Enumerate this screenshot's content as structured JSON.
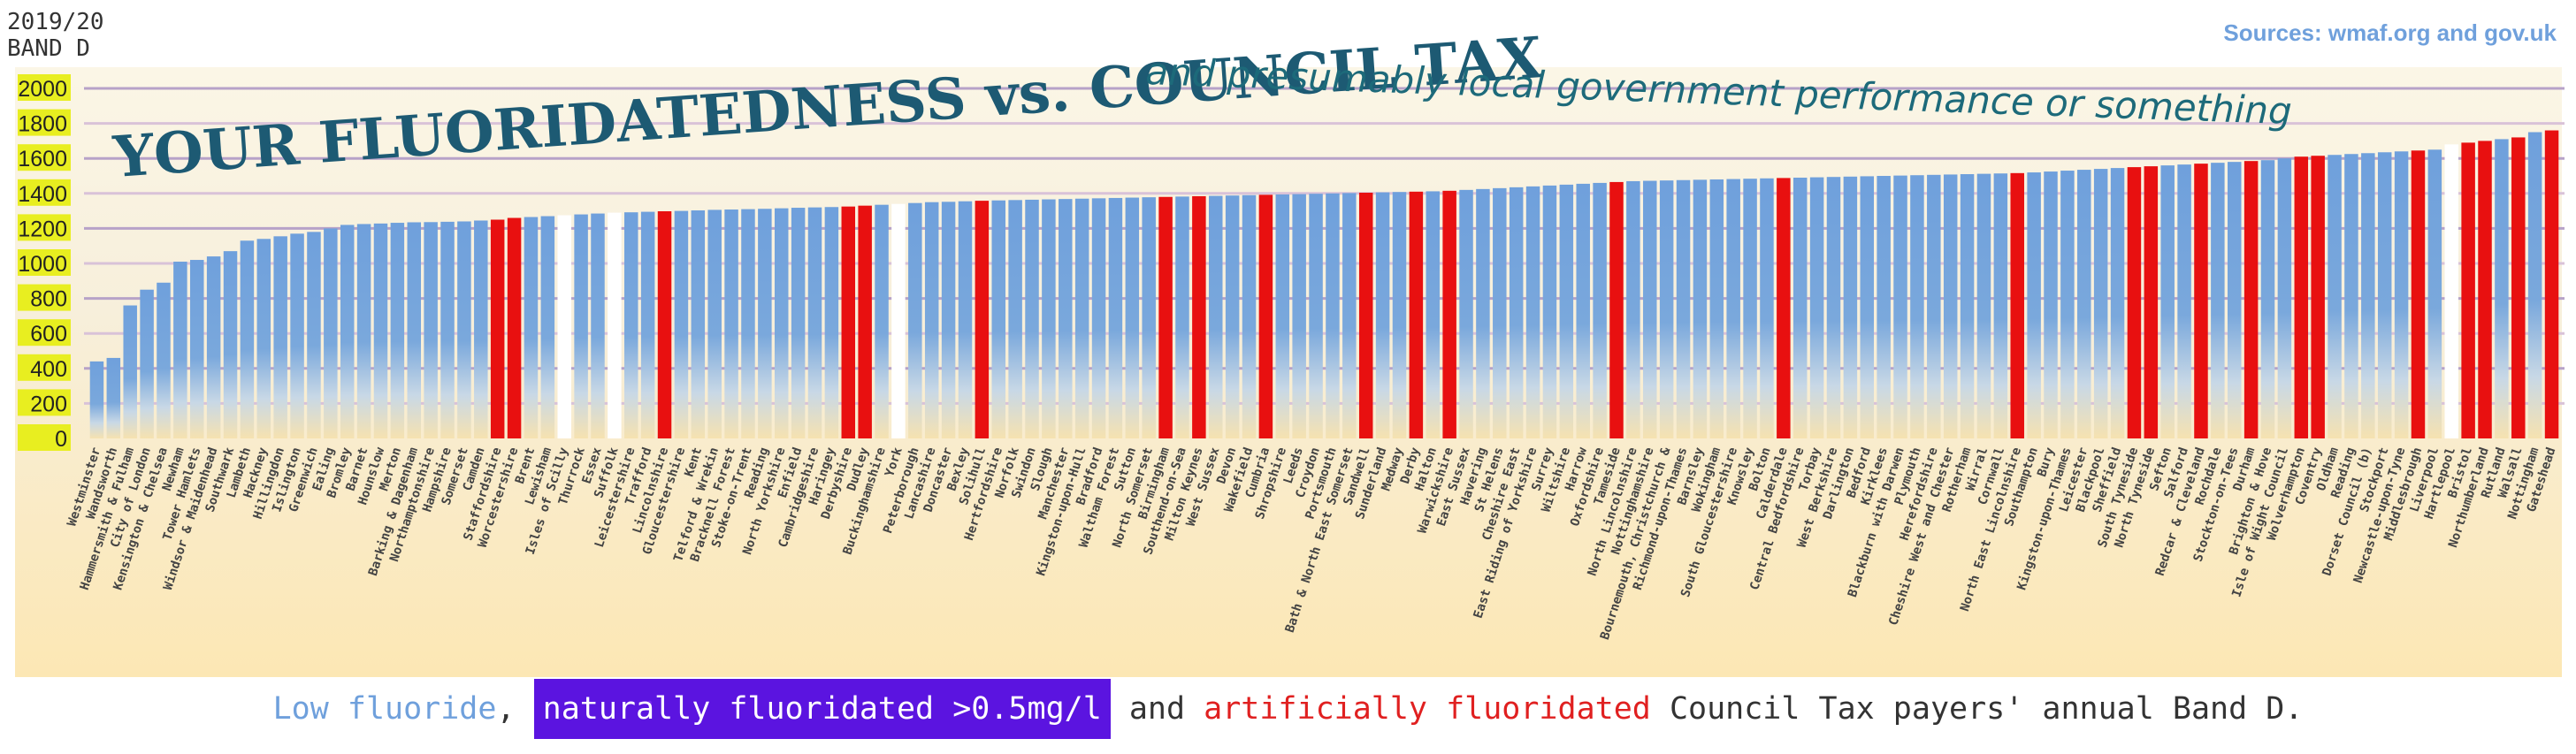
{
  "header": {
    "year": "2019/20",
    "band": "BAND D",
    "sources": "Sources: wmaf.org and gov.uk"
  },
  "caption": {
    "low": "Low fluoride",
    "sep1": ", ",
    "natural": "naturally fluoridated >0.5mg/l",
    "sep2": " and ",
    "artificial": "artificially fluoridated",
    "rest": " Council Tax payers' annual Band D."
  },
  "colors": {
    "low": "#6fa0dc",
    "natural": "#ffffff",
    "artificial": "#e81010",
    "title": "#1d5a73",
    "ytick_bg": "#e8ee20"
  },
  "chart_data": {
    "type": "bar",
    "title": "YOUR FLUORIDATEDNESS vs. COUNCIL TAX",
    "subtitle": "and presumably local government performance or something",
    "ylabel": "BAND D",
    "ylim": [
      0,
      2000
    ],
    "yticks": [
      0,
      200,
      400,
      600,
      800,
      1000,
      1200,
      1400,
      1600,
      1800,
      2000
    ],
    "grid": true,
    "legend": "caption below chart",
    "categories": [
      "Westminster",
      "Wandsworth",
      "Hammersmith & Fulham",
      "City of London",
      "Kensington & Chelsea",
      "Newham",
      "Tower Hamlets",
      "Windsor & Maidenhead",
      "Southwark",
      "Lambeth",
      "Hackney",
      "Hillingdon",
      "Islington",
      "Greenwich",
      "Ealing",
      "Bromley",
      "Barnet",
      "Hounslow",
      "Merton",
      "Barking & Dagenham",
      "Northamptonshire",
      "Hampshire",
      "Somerset",
      "Camden",
      "Staffordshire",
      "Worcestershire",
      "Brent",
      "Lewisham",
      "Isles of Scilly",
      "Thurrock",
      "Essex",
      "Suffolk",
      "Leicestershire",
      "Trafford",
      "Lincolnshire",
      "Gloucestershire",
      "Kent",
      "Telford & Wrekin",
      "Bracknell Forest",
      "Stoke-on-Trent",
      "Reading",
      "North Yorkshire",
      "Enfield",
      "Cambridgeshire",
      "Haringey",
      "Derbyshire",
      "Dudley",
      "Buckinghamshire",
      "York",
      "Peterborough",
      "Lancashire",
      "Doncaster",
      "Bexley",
      "Solihull",
      "Hertfordshire",
      "Norfolk",
      "Swindon",
      "Slough",
      "Manchester",
      "Kingston-upon-Hull",
      "Bradford",
      "Waltham Forest",
      "Sutton",
      "North Somerset",
      "Birmingham",
      "Southend-on-Sea",
      "Milton Keynes",
      "West Sussex",
      "Devon",
      "Wakefield",
      "Cumbria",
      "Shropshire",
      "Leeds",
      "Croydon",
      "Portsmouth",
      "Bath & North East Somerset",
      "Sandwell",
      "Sunderland",
      "Medway",
      "Derby",
      "Halton",
      "Warwickshire",
      "East Sussex",
      "Havering",
      "St Helens",
      "Cheshire East",
      "East Riding of Yorkshire",
      "Surrey",
      "Wiltshire",
      "Harrow",
      "Oxfordshire",
      "Tameside",
      "North Lincolnshire",
      "Nottinghamshire",
      "Bournemouth, Christchurch &",
      "Richmond-upon-Thames",
      "Barnsley",
      "Wokingham",
      "South Gloucestershire",
      "Knowsley",
      "Bolton",
      "Calderdale",
      "Central Bedfordshire",
      "Torbay",
      "West Berkshire",
      "Darlington",
      "Bedford",
      "Kirklees",
      "Blackburn with Darwen",
      "Plymouth",
      "Herefordshire",
      "Cheshire West and Chester",
      "Rotherham",
      "Wirral",
      "Cornwall",
      "North East Lincolnshire",
      "Southampton",
      "Bury",
      "Kingston-upon-Thames",
      "Leicester",
      "Blackpool",
      "Sheffield",
      "South Tyneside",
      "North Tyneside",
      "Sefton",
      "Salford",
      "Redcar & Cleveland",
      "Rochdale",
      "Stockton-on-Tees",
      "Durham",
      "Brighton & Hove",
      "Isle of Wight Council",
      "Wolverhampton",
      "Coventry",
      "Oldham",
      "Reading",
      "Dorset Council (b)",
      "Stockport",
      "Newcastle-upon-Tyne",
      "Middlesbrough",
      "Liverpool",
      "Hartlepool",
      "Bristol",
      "Northumberland",
      "Rutland",
      "Walsall",
      "Nottingham",
      "Gateshead"
    ],
    "values": [
      440,
      460,
      760,
      850,
      890,
      1010,
      1020,
      1040,
      1070,
      1130,
      1140,
      1155,
      1170,
      1180,
      1200,
      1220,
      1225,
      1228,
      1232,
      1235,
      1236,
      1238,
      1240,
      1245,
      1250,
      1260,
      1265,
      1270,
      1275,
      1280,
      1285,
      1290,
      1292,
      1295,
      1298,
      1300,
      1303,
      1306,
      1308,
      1310,
      1312,
      1315,
      1318,
      1320,
      1322,
      1325,
      1330,
      1335,
      1340,
      1345,
      1350,
      1352,
      1355,
      1358,
      1360,
      1362,
      1364,
      1366,
      1368,
      1370,
      1372,
      1374,
      1376,
      1378,
      1380,
      1382,
      1384,
      1386,
      1388,
      1390,
      1392,
      1394,
      1396,
      1398,
      1400,
      1402,
      1404,
      1406,
      1408,
      1410,
      1412,
      1415,
      1420,
      1425,
      1430,
      1435,
      1440,
      1445,
      1450,
      1455,
      1460,
      1465,
      1470,
      1472,
      1474,
      1476,
      1478,
      1480,
      1482,
      1484,
      1486,
      1488,
      1490,
      1492,
      1494,
      1496,
      1498,
      1500,
      1502,
      1504,
      1506,
      1508,
      1510,
      1512,
      1514,
      1516,
      1520,
      1525,
      1530,
      1535,
      1540,
      1545,
      1550,
      1555,
      1560,
      1565,
      1570,
      1575,
      1580,
      1585,
      1590,
      1600,
      1610,
      1615,
      1620,
      1625,
      1630,
      1635,
      1640,
      1645,
      1650,
      1680,
      1690,
      1700,
      1710,
      1720,
      1750,
      1760
    ],
    "fluoride": [
      "L",
      "L",
      "L",
      "L",
      "L",
      "L",
      "L",
      "L",
      "L",
      "L",
      "L",
      "L",
      "L",
      "L",
      "L",
      "L",
      "L",
      "L",
      "L",
      "L",
      "L",
      "L",
      "L",
      "L",
      "A",
      "A",
      "L",
      "L",
      "N",
      "L",
      "L",
      "N",
      "L",
      "L",
      "A",
      "L",
      "L",
      "L",
      "L",
      "L",
      "L",
      "L",
      "L",
      "L",
      "L",
      "A",
      "A",
      "L",
      "N",
      "L",
      "L",
      "L",
      "L",
      "A",
      "L",
      "L",
      "L",
      "L",
      "L",
      "L",
      "L",
      "L",
      "L",
      "L",
      "A",
      "L",
      "A",
      "L",
      "L",
      "L",
      "A",
      "L",
      "L",
      "L",
      "L",
      "L",
      "A",
      "L",
      "L",
      "A",
      "L",
      "A",
      "L",
      "L",
      "L",
      "L",
      "L",
      "L",
      "L",
      "L",
      "L",
      "A",
      "L",
      "L",
      "L",
      "L",
      "L",
      "L",
      "L",
      "L",
      "L",
      "A",
      "L",
      "L",
      "L",
      "L",
      "L",
      "L",
      "L",
      "L",
      "L",
      "L",
      "L",
      "L",
      "L",
      "A",
      "L",
      "L",
      "L",
      "L",
      "L",
      "L",
      "A",
      "A",
      "L",
      "L",
      "A",
      "L",
      "L",
      "A",
      "L",
      "L",
      "A",
      "A",
      "L",
      "L",
      "L",
      "L",
      "L",
      "A",
      "L",
      "N",
      "A",
      "A",
      "L",
      "A",
      "L",
      "A"
    ]
  }
}
